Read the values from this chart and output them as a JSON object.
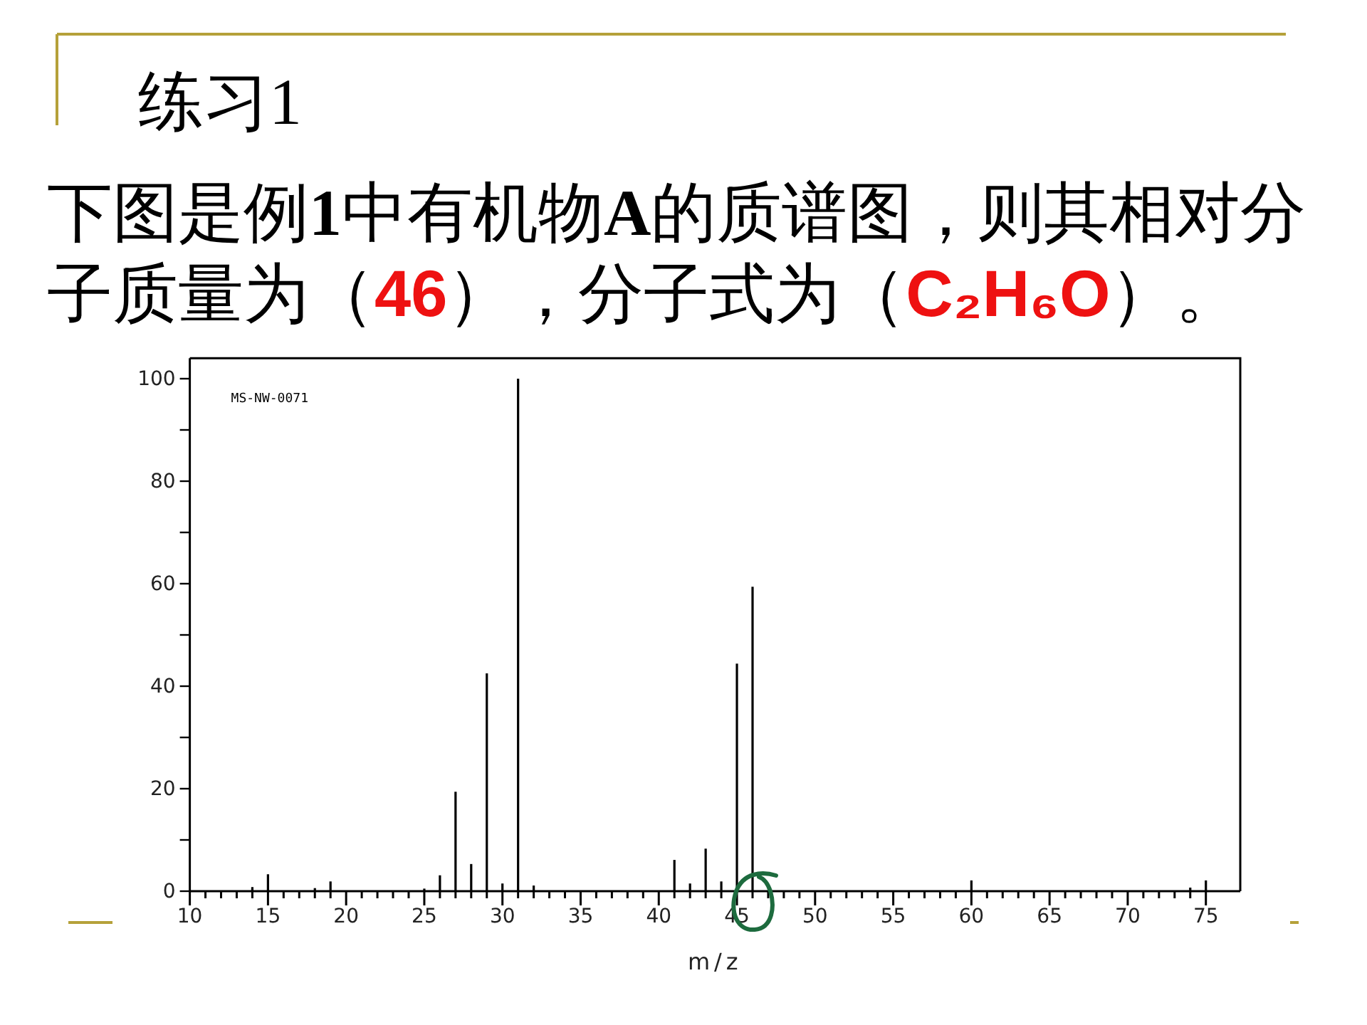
{
  "chart_data": {
    "type": "bar",
    "title": "练习1",
    "subtitle": "下图是例1中有机物A的质谱图，则其相对分子质量为（46），分子式为（C₂H₆O）。",
    "xlabel": "m/z",
    "annotations": [
      "MS-NW-0071"
    ],
    "x": [
      14,
      15,
      18,
      19,
      25,
      26,
      27,
      28,
      29,
      30,
      31,
      32,
      41,
      42,
      43,
      44,
      45,
      46,
      60,
      74,
      75
    ],
    "values": [
      0.8,
      3.3,
      0.6,
      1.9,
      0.5,
      3.1,
      19.4,
      5.3,
      42.5,
      1.5,
      100,
      1.1,
      6.1,
      1.5,
      8.3,
      1.9,
      44.4,
      59.4,
      2.1,
      0.7,
      2.1
    ],
    "color": "#000000",
    "xlim": [
      10,
      77.2
    ],
    "ylim": [
      0,
      104
    ],
    "xticks": [
      10,
      {
        "value": 11,
        "label": null
      },
      {
        "value": 12,
        "label": null
      },
      {
        "value": 13,
        "label": null
      },
      {
        "value": 14,
        "label": null
      },
      15,
      {
        "value": 16,
        "label": null
      },
      {
        "value": 17,
        "label": null
      },
      {
        "value": 18,
        "label": null
      },
      {
        "value": 19,
        "label": null
      },
      20,
      {
        "value": 21,
        "label": null
      },
      {
        "value": 22,
        "label": null
      },
      {
        "value": 23,
        "label": null
      },
      {
        "value": 24,
        "label": null
      },
      25,
      {
        "value": 26,
        "label": null
      },
      {
        "value": 27,
        "label": null
      },
      {
        "value": 28,
        "label": null
      },
      {
        "value": 29,
        "label": null
      },
      30,
      {
        "value": 31,
        "label": null
      },
      {
        "value": 32,
        "label": null
      },
      {
        "value": 33,
        "label": null
      },
      {
        "value": 34,
        "label": null
      },
      35,
      {
        "value": 36,
        "label": null
      },
      {
        "value": 37,
        "label": null
      },
      {
        "value": 38,
        "label": null
      },
      {
        "value": 39,
        "label": null
      },
      40,
      {
        "value": 41,
        "label": null
      },
      {
        "value": 42,
        "label": null
      },
      {
        "value": 43,
        "label": null
      },
      {
        "value": 44,
        "label": null
      },
      45,
      {
        "value": 46,
        "label": null
      },
      {
        "value": 47,
        "label": null
      },
      {
        "value": 48,
        "label": null
      },
      {
        "value": 49,
        "label": null
      },
      50,
      {
        "value": 51,
        "label": null
      },
      {
        "value": 52,
        "label": null
      },
      {
        "value": 53,
        "label": null
      },
      {
        "value": 54,
        "label": null
      },
      55,
      {
        "value": 56,
        "label": null
      },
      {
        "value": 57,
        "label": null
      },
      {
        "value": 58,
        "label": null
      },
      {
        "value": 59,
        "label": null
      },
      60,
      {
        "value": 61,
        "label": null
      },
      {
        "value": 62,
        "label": null
      },
      {
        "value": 63,
        "label": null
      },
      {
        "value": 64,
        "label": null
      },
      65,
      {
        "value": 66,
        "label": null
      },
      {
        "value": 67,
        "label": null
      },
      {
        "value": 68,
        "label": null
      },
      {
        "value": 69,
        "label": null
      },
      70,
      {
        "value": 71,
        "label": null
      },
      {
        "value": 72,
        "label": null
      },
      {
        "value": 73,
        "label": null
      },
      {
        "value": 74,
        "label": null
      },
      75
    ],
    "yticks": [
      0,
      {
        "value": 10,
        "label": null
      },
      20,
      {
        "value": 30,
        "label": null
      },
      40,
      {
        "value": 50,
        "label": null
      },
      60,
      {
        "value": 70,
        "label": null
      },
      80,
      {
        "value": 90,
        "label": null
      },
      100
    ]
  }
}
